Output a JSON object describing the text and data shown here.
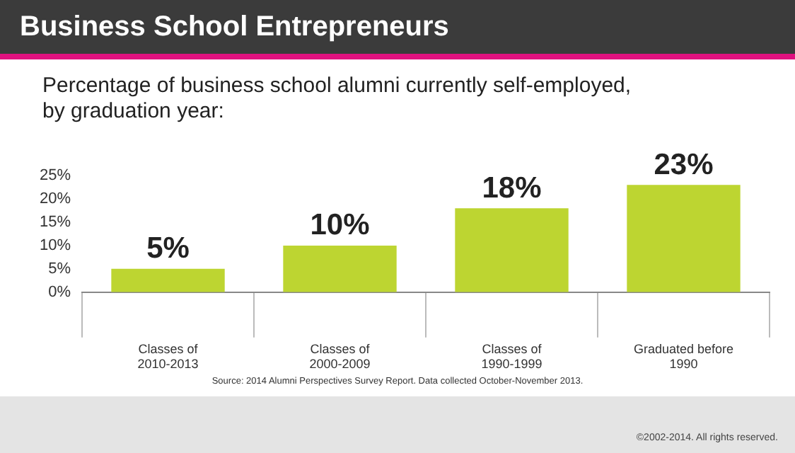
{
  "chart_data": {
    "type": "bar",
    "title": "Business School Entrepreneurs",
    "subtitle": "Percentage of business school alumni currently self-employed, by graduation year:",
    "categories": [
      "Classes of 2010-2013",
      "Classes of 2000-2009",
      "Classes of 1990-1999",
      "Graduated before 1990"
    ],
    "values": [
      5,
      10,
      18,
      23
    ],
    "color": "#bdd531",
    "value_labels": [
      "5%",
      "10%",
      "18%",
      "23%"
    ],
    "ylim": [
      0,
      25
    ],
    "yticks": [
      {
        "value": 0,
        "label": "0%"
      },
      {
        "value": 5,
        "label": "5%"
      },
      {
        "value": 10,
        "label": "10%"
      },
      {
        "value": 15,
        "label": "15%"
      },
      {
        "value": 20,
        "label": "20%"
      },
      {
        "value": 25,
        "label": "25%"
      }
    ],
    "grid": false,
    "legend": false,
    "annotations": [
      "Source: 2014 Alumni Perspectives Survey Report. Data collected October-November 2013.",
      "©2002-2014. All rights reserved."
    ]
  }
}
